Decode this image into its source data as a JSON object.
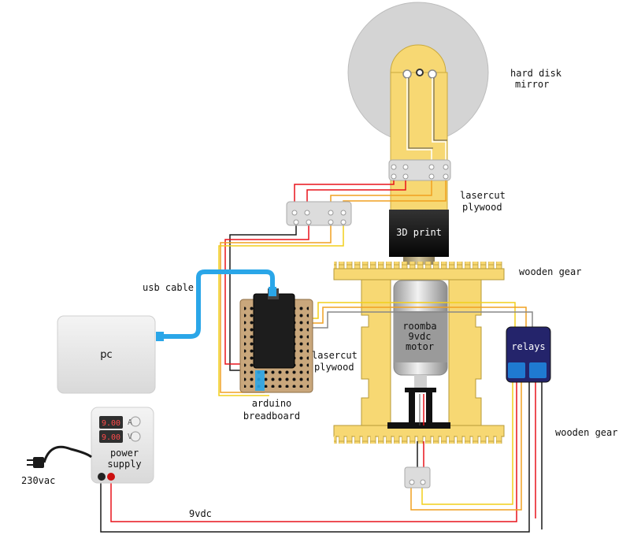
{
  "labels": {
    "mirror_line1": "hard disk",
    "mirror_line2": "mirror",
    "lasercut_top_line1": "lasercut",
    "lasercut_top_line2": "plywood",
    "print_3d": "3D print",
    "wooden_gear_top": "wooden gear",
    "usb_cable": "usb cable",
    "pc": "pc",
    "motor_line1": "roomba",
    "motor_line2": "9vdc",
    "motor_line3": "motor",
    "relays": "relays",
    "lasercut_mid_line1": "lasercut",
    "lasercut_mid_line2": "plywood",
    "arduino_line1": "arduino",
    "arduino_line2": "breadboard",
    "wooden_gear_bottom": "wooden gear",
    "psu_readout_a": "9.00",
    "psu_unit_a": "A",
    "psu_readout_v": "9.00",
    "psu_unit_v": "V",
    "psu_line1": "power",
    "psu_line2": "supply",
    "mains": "230vac",
    "supply_voltage": "9vdc"
  },
  "colors": {
    "wire_red": "#e8131b",
    "wire_black": "#1a1a1a",
    "wire_yellow": "#f2cf1a",
    "wire_orange": "#f0a020",
    "wire_gray": "#888888",
    "usb_blue": "#2aa6e8",
    "wood": "#f7d873",
    "relay_blue": "#1f7ad1"
  }
}
